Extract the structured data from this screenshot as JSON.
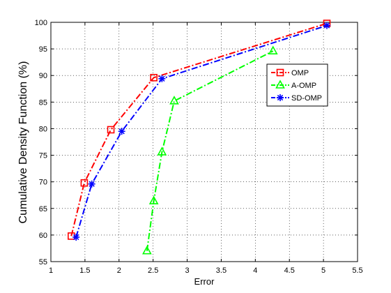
{
  "chart_data": {
    "type": "line",
    "xlabel": "Error",
    "ylabel": "Cumulative Density Function (%)",
    "xlim": [
      1,
      5.5
    ],
    "ylim": [
      55,
      100
    ],
    "xticks": [
      "1",
      "1.5",
      "2",
      "2.5",
      "3",
      "3.5",
      "4",
      "4.5",
      "5",
      "5.5"
    ],
    "yticks": [
      "55",
      "60",
      "65",
      "70",
      "75",
      "80",
      "85",
      "90",
      "95",
      "100"
    ],
    "grid": true,
    "legend_position": "right",
    "series": [
      {
        "name": "OMP",
        "color": "#ff0000",
        "marker": "square",
        "line_style": "dash-dot",
        "x": [
          1.3,
          1.49,
          1.88,
          2.51,
          5.05
        ],
        "y": [
          59.8,
          69.8,
          79.8,
          89.6,
          99.8
        ]
      },
      {
        "name": "A-OMP",
        "color": "#00ff00",
        "marker": "triangle",
        "line_style": "dash-dot",
        "x": [
          2.41,
          2.51,
          2.63,
          2.81,
          4.26
        ],
        "y": [
          57.0,
          66.4,
          75.6,
          85.2,
          94.6
        ]
      },
      {
        "name": "SD-OMP",
        "color": "#0000ff",
        "marker": "star",
        "line_style": "dash-dot",
        "x": [
          1.37,
          1.6,
          2.04,
          2.63,
          5.05
        ],
        "y": [
          59.6,
          69.6,
          79.5,
          89.4,
          99.4
        ]
      }
    ]
  }
}
